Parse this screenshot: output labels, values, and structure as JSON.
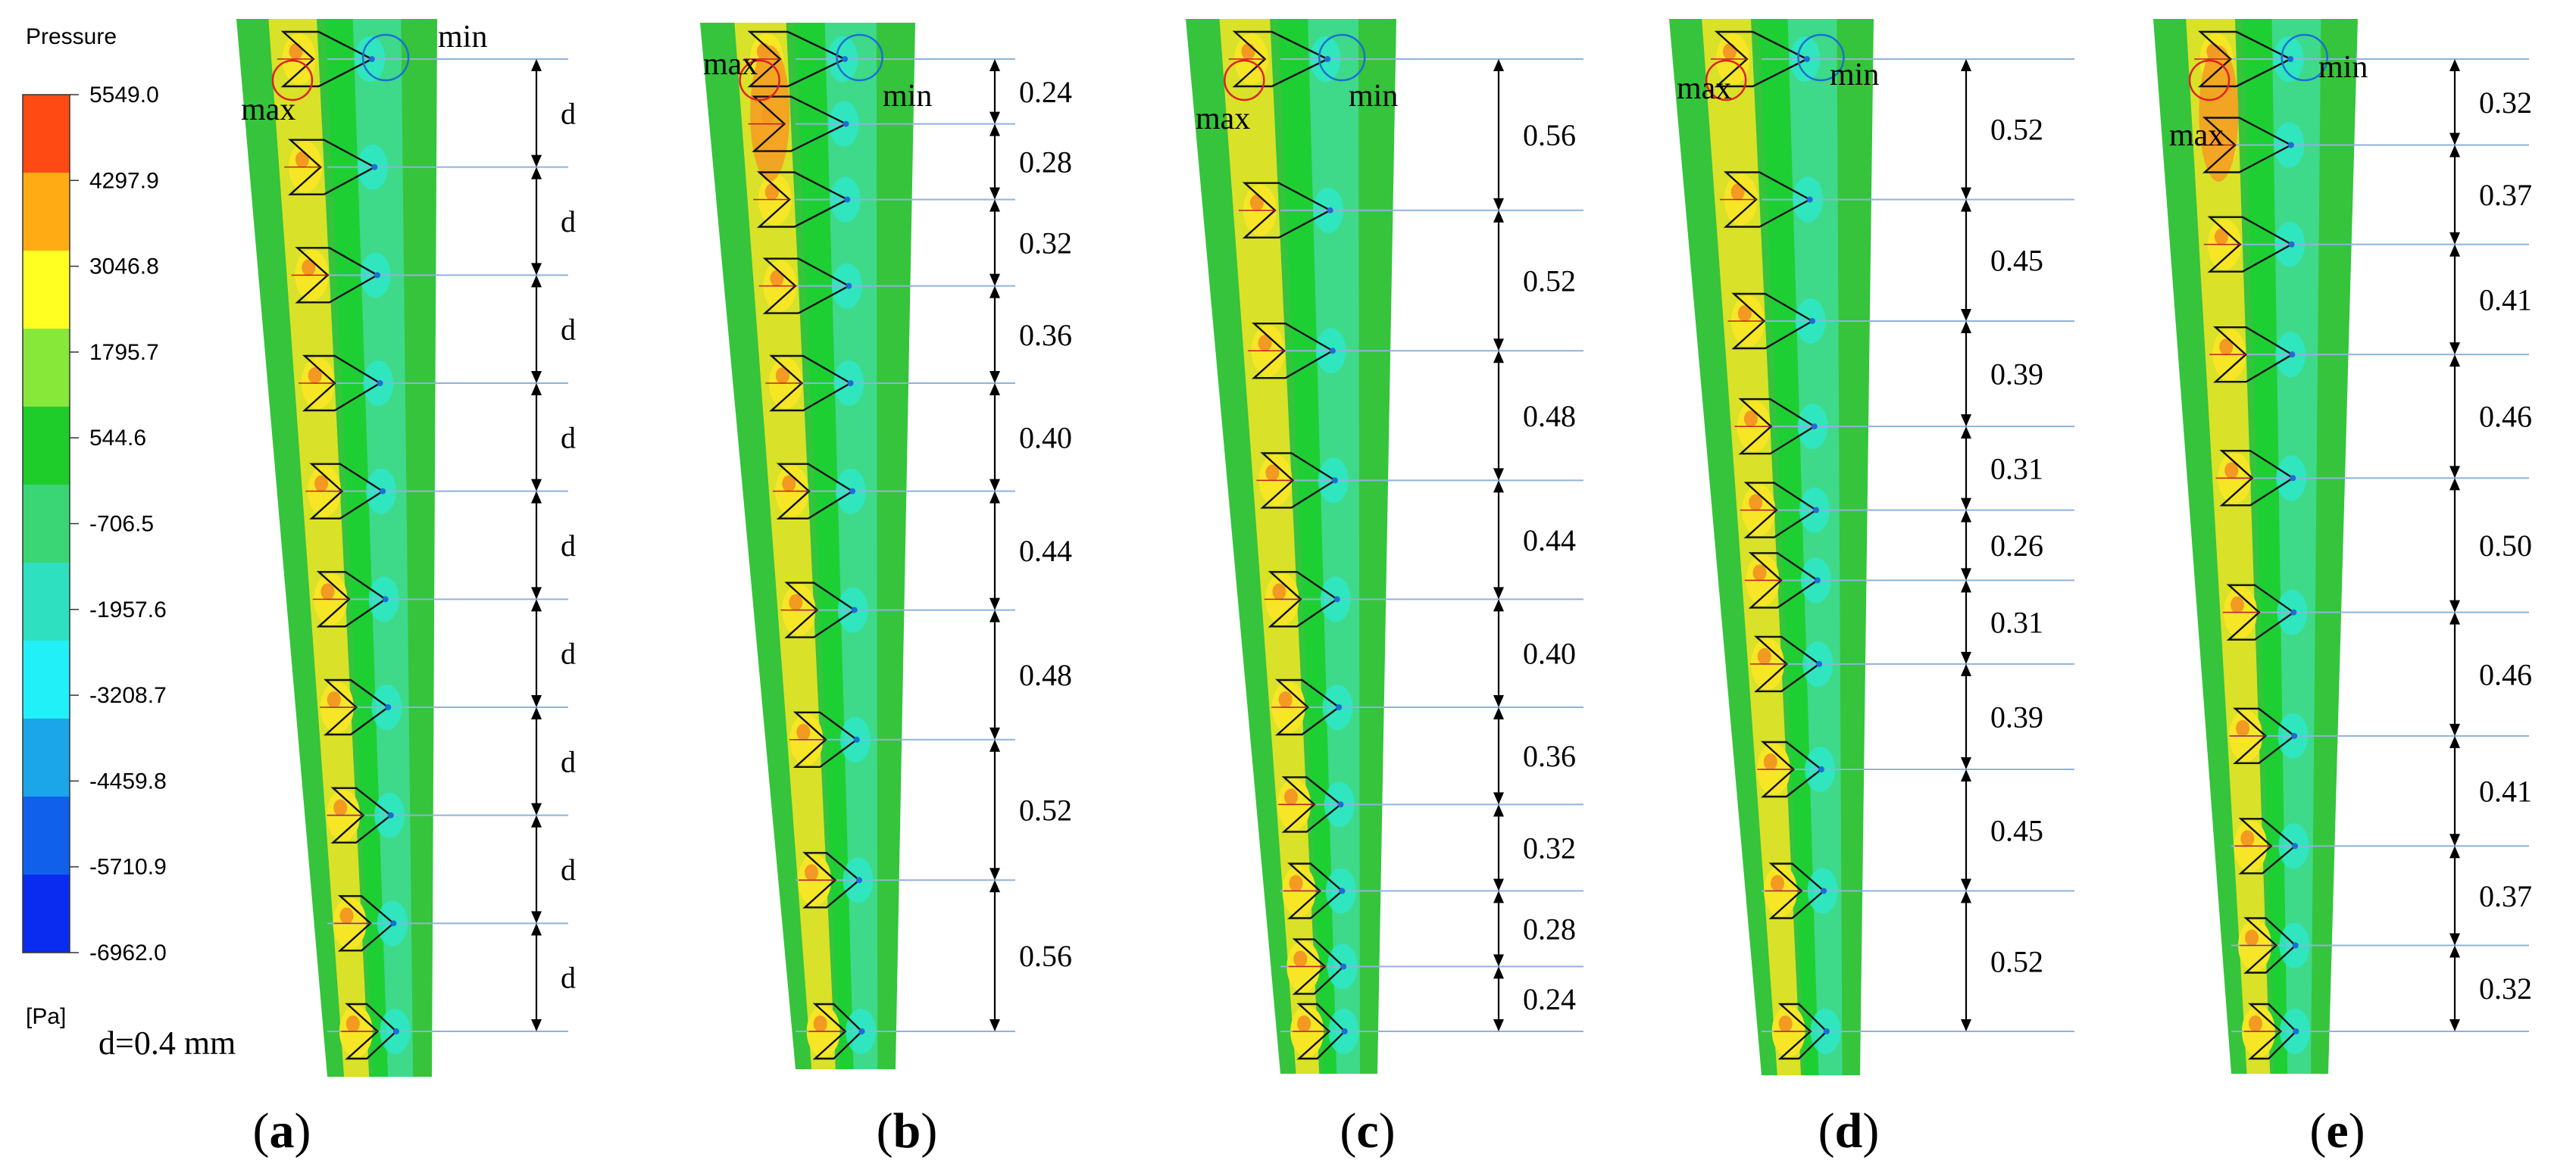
{
  "legend": {
    "title": "Pressure",
    "unit": "[Pa]",
    "ticks": [
      "5549.0",
      "4297.9",
      "3046.8",
      "1795.7",
      "544.6",
      "-706.5",
      "-1957.6",
      "-3208.7",
      "-4459.8",
      "-5710.9",
      "-6962.0"
    ],
    "colors": [
      "#ff4a14",
      "#ffac14",
      "#ffff22",
      "#88e83a",
      "#1ecd2a",
      "#3ad676",
      "#2ee0c0",
      "#22f0f8",
      "#1aa6e8",
      "#1060ec",
      "#0a2cf0"
    ]
  },
  "background_colors": {
    "outer": "#35c43c",
    "center_band": "#1ecf34",
    "right_band": "#3fd98a",
    "high_pressure": "#f6e626",
    "hot_spot": "#f39a22",
    "low_pressure": "#2ce8cc",
    "max_marker": "#e02020",
    "min_marker": "#1a6fd6",
    "gridline": "#8fb2dc"
  },
  "panels": [
    {
      "id": "a",
      "caption_letter": "a",
      "d_label": "d=0.4 mm",
      "segments": [
        "d",
        "d",
        "d",
        "d",
        "d",
        "d",
        "d",
        "d",
        "d"
      ]
    },
    {
      "id": "b",
      "caption_letter": "b",
      "d_label": "",
      "segments": [
        "0.24",
        "0.28",
        "0.32",
        "0.36",
        "0.40",
        "0.44",
        "0.48",
        "0.52",
        "0.56"
      ]
    },
    {
      "id": "c",
      "caption_letter": "c",
      "d_label": "",
      "segments": [
        "0.56",
        "0.52",
        "0.48",
        "0.44",
        "0.40",
        "0.36",
        "0.32",
        "0.28",
        "0.24"
      ]
    },
    {
      "id": "d",
      "caption_letter": "d",
      "d_label": "",
      "segments": [
        "0.52",
        "0.45",
        "0.39",
        "0.31",
        "0.26",
        "0.31",
        "0.39",
        "0.45",
        "0.52"
      ]
    },
    {
      "id": "e",
      "caption_letter": "e",
      "d_label": "",
      "segments": [
        "0.32",
        "0.37",
        "0.41",
        "0.46",
        "0.50",
        "0.46",
        "0.41",
        "0.37",
        "0.32"
      ]
    }
  ],
  "labels": {
    "max": "max",
    "min": "min"
  }
}
